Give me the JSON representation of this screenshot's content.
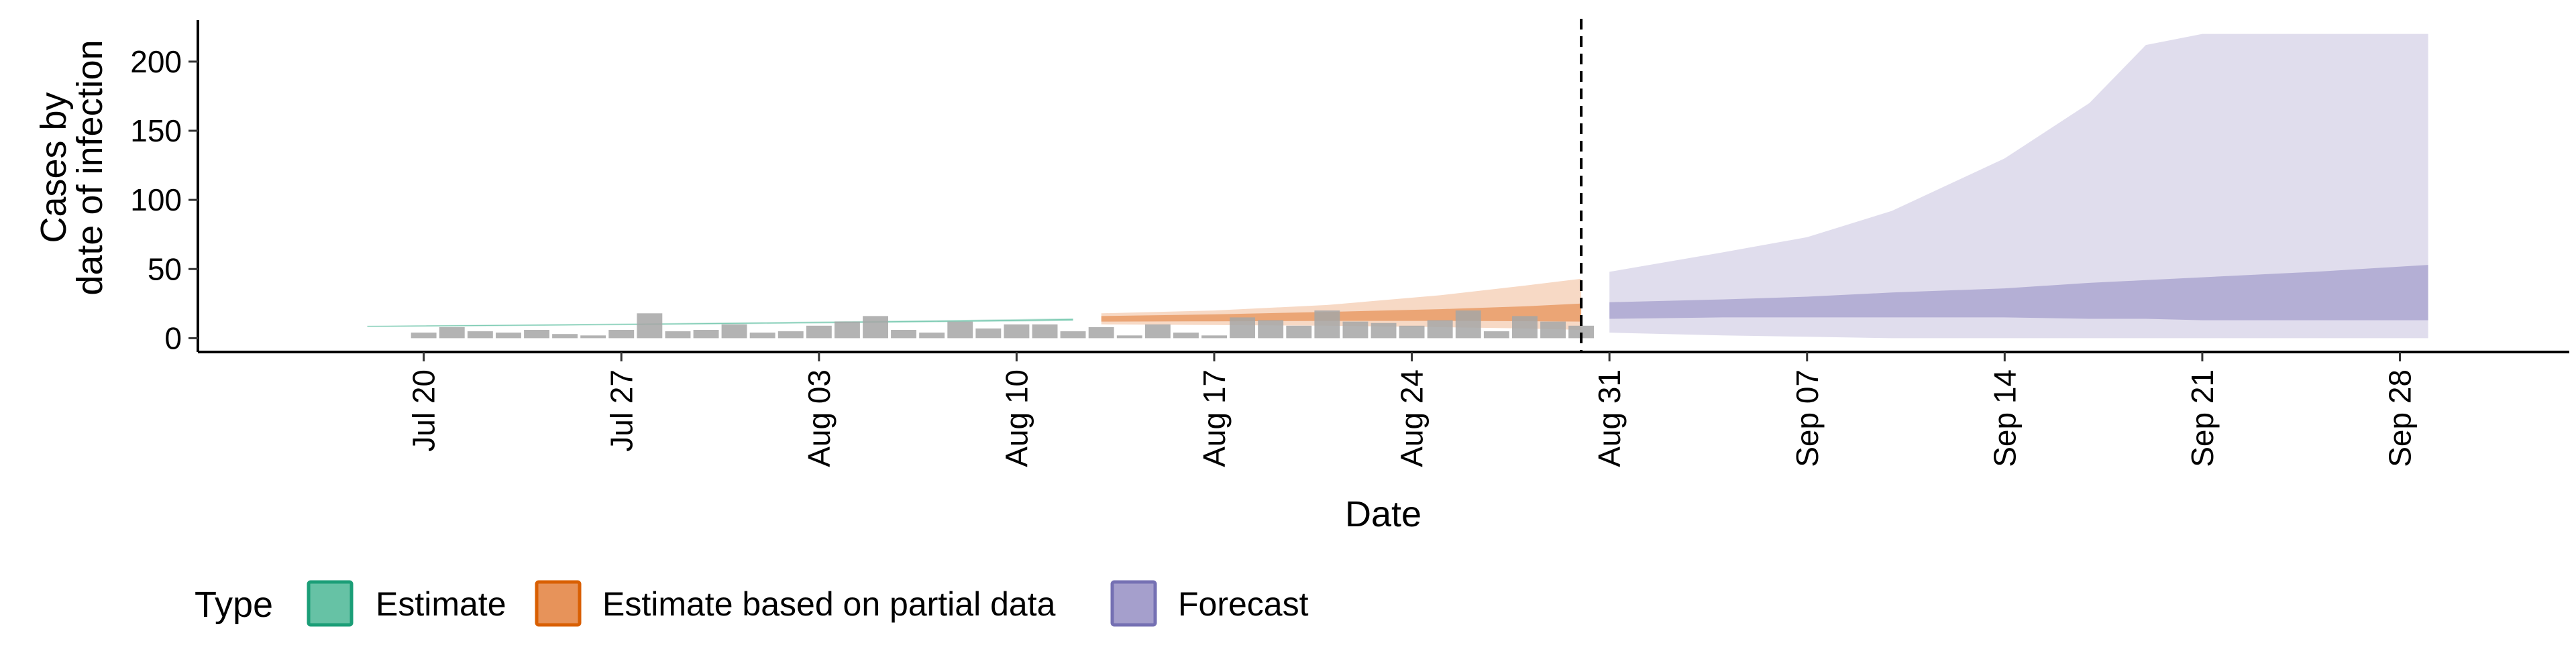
{
  "chart_data": {
    "type": "area",
    "xlabel": "Date",
    "ylabel_lines": [
      "Cases by",
      "date of infection"
    ],
    "x_range": [
      "2020-07-12",
      "2020-10-04"
    ],
    "ylim": [
      -10,
      230
    ],
    "y_ticks": [
      0,
      50,
      100,
      150,
      200
    ],
    "x_ticks": [
      {
        "date": "2020-07-20",
        "label": "Jul 20"
      },
      {
        "date": "2020-07-27",
        "label": "Jul 27"
      },
      {
        "date": "2020-08-03",
        "label": "Aug 03"
      },
      {
        "date": "2020-08-10",
        "label": "Aug 10"
      },
      {
        "date": "2020-08-17",
        "label": "Aug 17"
      },
      {
        "date": "2020-08-24",
        "label": "Aug 24"
      },
      {
        "date": "2020-08-31",
        "label": "Aug 31"
      },
      {
        "date": "2020-09-07",
        "label": "Sep 07"
      },
      {
        "date": "2020-09-14",
        "label": "Sep 14"
      },
      {
        "date": "2020-09-21",
        "label": "Sep 21"
      },
      {
        "date": "2020-09-28",
        "label": "Sep 28"
      }
    ],
    "grid": false,
    "vline_date": "2020-08-30",
    "legend": {
      "position": "bottom",
      "title": "Type",
      "items": [
        {
          "label": "Estimate",
          "fill": "#66C2A5",
          "stroke": "#1B9E77"
        },
        {
          "label": "Estimate based on partial data",
          "fill": "#E7935A",
          "stroke": "#D95F02"
        },
        {
          "label": "Forecast",
          "fill": "#A59FCC",
          "stroke": "#7570B3"
        }
      ]
    },
    "observed_cases": {
      "color": "#A6A6A6",
      "start_date": "2020-07-20",
      "values": [
        4,
        8,
        5,
        4,
        6,
        3,
        2,
        6,
        18,
        5,
        6,
        10,
        4,
        5,
        9,
        12,
        16,
        6,
        4,
        12,
        7,
        10,
        10,
        5,
        8,
        2,
        10,
        4,
        2,
        15,
        13,
        9,
        20,
        12,
        11,
        9,
        13,
        20,
        5,
        16,
        12,
        9
      ]
    },
    "series": [
      {
        "name": "Estimate",
        "fill": "#66C2A5",
        "stroke": "#1B9E77",
        "points": [
          [
            "2020-07-18",
            8.0,
            9.0,
            8.3,
            8.8
          ],
          [
            "2020-07-25",
            9.0,
            10.2,
            9.3,
            9.9
          ],
          [
            "2020-08-01",
            10.2,
            11.6,
            10.6,
            11.2
          ],
          [
            "2020-08-08",
            11.6,
            13.2,
            12.0,
            12.8
          ],
          [
            "2020-08-12",
            12.4,
            14.4,
            12.9,
            13.9
          ]
        ]
      },
      {
        "name": "Estimate based on partial data",
        "fill": "#E7935A",
        "stroke": "#D95F02",
        "points": [
          [
            "2020-08-13",
            10.0,
            18.0,
            12.0,
            16.0
          ],
          [
            "2020-08-17",
            9.5,
            20.0,
            12.2,
            17.2
          ],
          [
            "2020-08-21",
            9.0,
            24.0,
            12.5,
            19.0
          ],
          [
            "2020-08-25",
            8.0,
            31.0,
            12.5,
            21.0
          ],
          [
            "2020-08-28",
            7.0,
            38.0,
            12.3,
            23.0
          ],
          [
            "2020-08-30",
            6.0,
            43.0,
            12.0,
            25.0
          ]
        ]
      },
      {
        "name": "Forecast",
        "fill": "#A59FCC",
        "stroke": "#7570B3",
        "points": [
          [
            "2020-08-31",
            4,
            48,
            14,
            26
          ],
          [
            "2020-09-04",
            2,
            62,
            15,
            28
          ],
          [
            "2020-09-07",
            1,
            73,
            15,
            30
          ],
          [
            "2020-09-10",
            0,
            92,
            15,
            33
          ],
          [
            "2020-09-14",
            0,
            130,
            15,
            36
          ],
          [
            "2020-09-17",
            0,
            170,
            14,
            40
          ],
          [
            "2020-09-19",
            0,
            212,
            14,
            42
          ],
          [
            "2020-09-21",
            0,
            220,
            13,
            44
          ],
          [
            "2020-09-25",
            0,
            220,
            13,
            48
          ],
          [
            "2020-09-29",
            0,
            220,
            13,
            53
          ]
        ]
      }
    ]
  }
}
